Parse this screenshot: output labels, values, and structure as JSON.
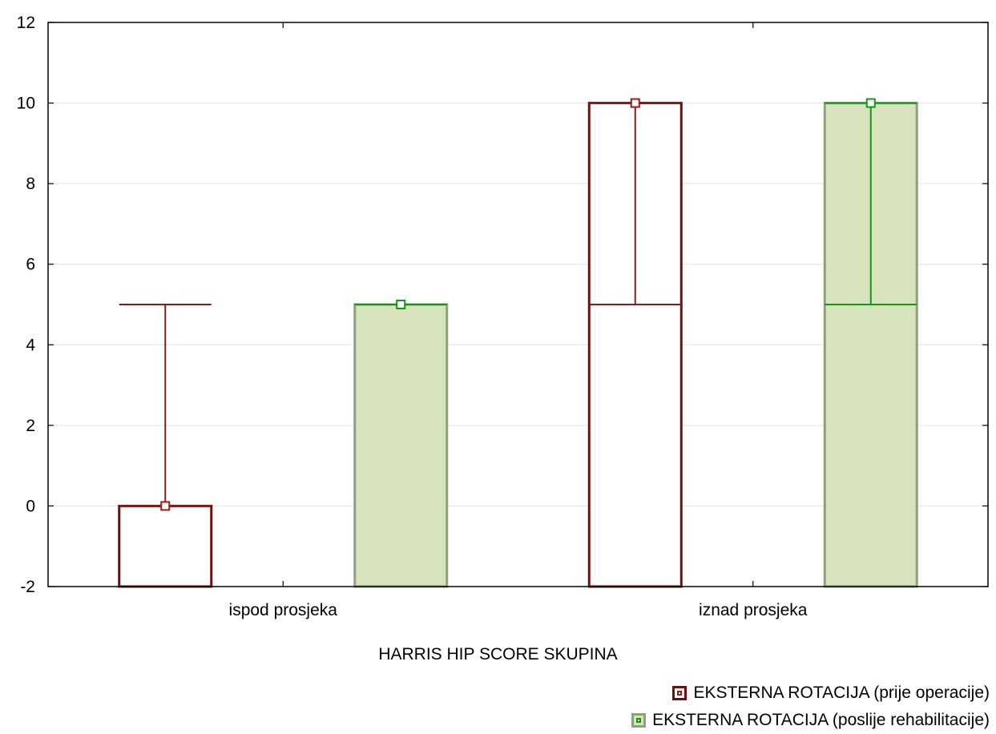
{
  "chart_data": {
    "type": "bar",
    "xlabel": "HARRIS HIP SCORE SKUPINA",
    "ylim": [
      -2,
      12
    ],
    "yticks": [
      -2,
      0,
      2,
      4,
      6,
      8,
      10,
      12
    ],
    "categories": [
      "ispod prosjeka",
      "iznad prosjeka"
    ],
    "series": [
      {
        "name": "EKSTERNA ROTACIJA (prije operacije)",
        "color": "#6b0f0f",
        "marker_color": "#a01818",
        "fill": "#ffffff",
        "values": [
          0,
          10
        ],
        "box_upper": [
          0,
          10
        ],
        "whisker_high": [
          5,
          10
        ],
        "whisker_low": [
          0,
          5
        ]
      },
      {
        "name": "EKSTERNA ROTACIJA (poslije rehabilitacije)",
        "color": "#8fa07a",
        "marker_color": "#119911",
        "fill": "#d6e3bc",
        "values": [
          5,
          10
        ],
        "box_upper": [
          5,
          10
        ],
        "whisker_high": [
          5,
          10
        ],
        "whisker_low": [
          5,
          5
        ]
      }
    ],
    "grid": true,
    "legend_position": "bottom-right"
  }
}
